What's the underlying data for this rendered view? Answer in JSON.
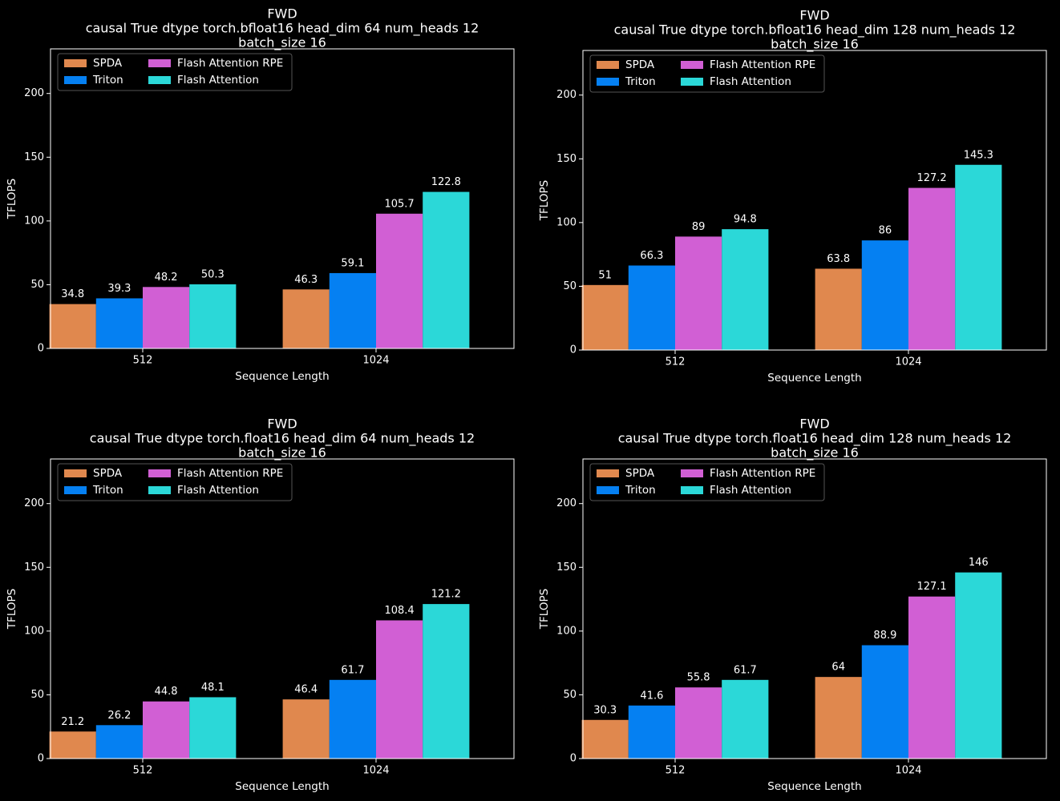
{
  "figure": {
    "background": "#000000",
    "foreground": "#ffffff"
  },
  "series_colors": [
    "#e0884e",
    "#0580f2",
    "#d15fd4",
    "#2bd8d8"
  ],
  "chart_data": [
    {
      "type": "bar",
      "title_lines": [
        "FWD",
        "causal True dtype torch.bfloat16 head_dim 64 num_heads 12",
        "batch_size 16"
      ],
      "xlabel": "Sequence Length",
      "ylabel": "TFLOPS",
      "ylim": [
        0,
        235
      ],
      "yticks": [
        0,
        50,
        100,
        150,
        200
      ],
      "categories": [
        "512",
        "1024"
      ],
      "legend_position": "upper-left",
      "series": [
        {
          "name": "SPDA",
          "values": [
            34.8,
            46.3
          ]
        },
        {
          "name": "Triton",
          "values": [
            39.3,
            59.1
          ]
        },
        {
          "name": "Flash Attention RPE",
          "values": [
            48.2,
            105.7
          ]
        },
        {
          "name": "Flash Attention",
          "values": [
            50.3,
            122.8
          ]
        }
      ]
    },
    {
      "type": "bar",
      "title_lines": [
        "FWD",
        "causal True dtype torch.bfloat16 head_dim 128 num_heads 12",
        "batch_size 16"
      ],
      "xlabel": "Sequence Length",
      "ylabel": "TFLOPS",
      "ylim": [
        0,
        235
      ],
      "yticks": [
        0,
        50,
        100,
        150,
        200
      ],
      "categories": [
        "512",
        "1024"
      ],
      "legend_position": "upper-left",
      "series": [
        {
          "name": "SPDA",
          "values": [
            51,
            63.8
          ]
        },
        {
          "name": "Triton",
          "values": [
            66.3,
            86
          ]
        },
        {
          "name": "Flash Attention RPE",
          "values": [
            89,
            127.2
          ]
        },
        {
          "name": "Flash Attention",
          "values": [
            94.8,
            145.3
          ]
        }
      ]
    },
    {
      "type": "bar",
      "title_lines": [
        "FWD",
        "causal True dtype torch.float16 head_dim 64 num_heads 12",
        "batch_size 16"
      ],
      "xlabel": "Sequence Length",
      "ylabel": "TFLOPS",
      "ylim": [
        0,
        235
      ],
      "yticks": [
        0,
        50,
        100,
        150,
        200
      ],
      "categories": [
        "512",
        "1024"
      ],
      "legend_position": "upper-left",
      "series": [
        {
          "name": "SPDA",
          "values": [
            21.2,
            46.4
          ]
        },
        {
          "name": "Triton",
          "values": [
            26.2,
            61.7
          ]
        },
        {
          "name": "Flash Attention RPE",
          "values": [
            44.8,
            108.4
          ]
        },
        {
          "name": "Flash Attention",
          "values": [
            48.1,
            121.2
          ]
        }
      ]
    },
    {
      "type": "bar",
      "title_lines": [
        "FWD",
        "causal True dtype torch.float16 head_dim 128 num_heads 12",
        "batch_size 16"
      ],
      "xlabel": "Sequence Length",
      "ylabel": "TFLOPS",
      "ylim": [
        0,
        235
      ],
      "yticks": [
        0,
        50,
        100,
        150,
        200
      ],
      "categories": [
        "512",
        "1024"
      ],
      "legend_position": "upper-left",
      "series": [
        {
          "name": "SPDA",
          "values": [
            30.3,
            64
          ]
        },
        {
          "name": "Triton",
          "values": [
            41.6,
            88.9
          ]
        },
        {
          "name": "Flash Attention RPE",
          "values": [
            55.8,
            127.1
          ]
        },
        {
          "name": "Flash Attention",
          "values": [
            61.7,
            146
          ]
        }
      ]
    }
  ]
}
